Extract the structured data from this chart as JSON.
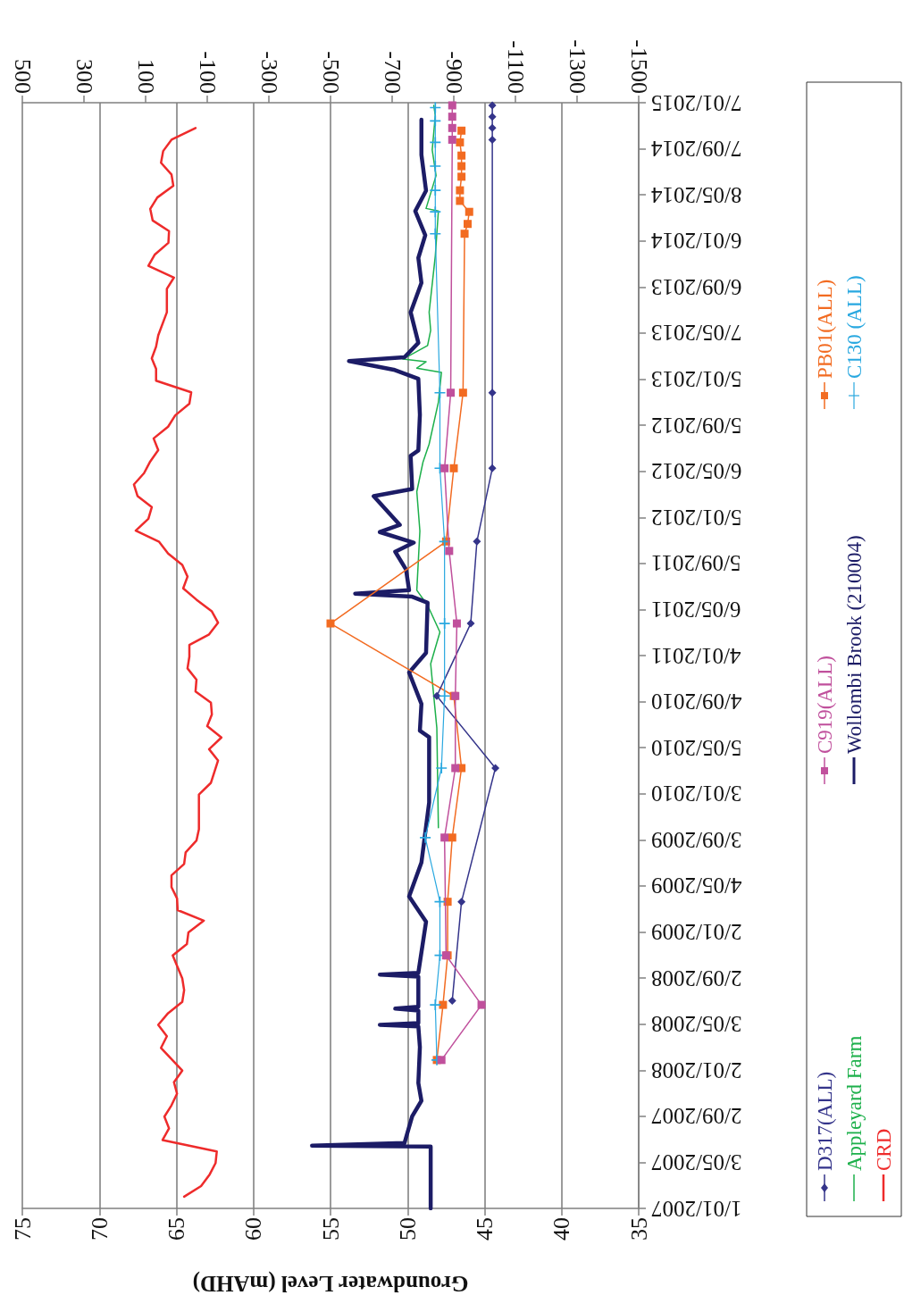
{
  "chart_data": {
    "type": "line",
    "orientation": "horizontal",
    "xlabel": "Groundwater Level (mAHD)",
    "ylim": [
      "2007-01-01",
      "2015-01-07"
    ],
    "yticks": [
      {
        "value": "2007-01-01",
        "label": "1/01/2007"
      },
      {
        "value": "2007-05-03",
        "label": "3/05/2007"
      },
      {
        "value": "2007-09-02",
        "label": "2/09/2007"
      },
      {
        "value": "2008-01-02",
        "label": "2/01/2008"
      },
      {
        "value": "2008-05-03",
        "label": "3/05/2008"
      },
      {
        "value": "2008-09-02",
        "label": "2/09/2008"
      },
      {
        "value": "2009-01-02",
        "label": "2/01/2009"
      },
      {
        "value": "2009-05-04",
        "label": "4/05/2009"
      },
      {
        "value": "2009-09-03",
        "label": "3/09/2009"
      },
      {
        "value": "2010-01-03",
        "label": "3/01/2010"
      },
      {
        "value": "2010-05-05",
        "label": "5/05/2010"
      },
      {
        "value": "2010-09-04",
        "label": "4/09/2010"
      },
      {
        "value": "2011-01-04",
        "label": "4/01/2011"
      },
      {
        "value": "2011-05-06",
        "label": "6/05/2011"
      },
      {
        "value": "2011-09-05",
        "label": "5/09/2011"
      },
      {
        "value": "2012-01-05",
        "label": "5/01/2012"
      },
      {
        "value": "2012-05-06",
        "label": "6/05/2012"
      },
      {
        "value": "2012-09-05",
        "label": "5/09/2012"
      },
      {
        "value": "2013-01-05",
        "label": "5/01/2013"
      },
      {
        "value": "2013-05-07",
        "label": "7/05/2013"
      },
      {
        "value": "2013-09-06",
        "label": "6/09/2013"
      },
      {
        "value": "2014-01-06",
        "label": "6/01/2014"
      },
      {
        "value": "2014-05-08",
        "label": "8/05/2014"
      },
      {
        "value": "2014-09-07",
        "label": "7/09/2014"
      },
      {
        "value": "2015-01-07",
        "label": "7/01/2015"
      }
    ],
    "xlim": [
      75,
      35
    ],
    "xticks": [
      75,
      70,
      65,
      60,
      55,
      50,
      45,
      40,
      35
    ],
    "x2lim": [
      500,
      -1500
    ],
    "x2ticks": [
      500,
      300,
      100,
      -100,
      -300,
      -500,
      -700,
      -900,
      -1100,
      -1300,
      -1500
    ],
    "grid": "x",
    "legend": "right",
    "series": [
      {
        "name": "D317(ALL)",
        "color": "#34348a",
        "marker": "diamond",
        "x": [
          "2008-07-04",
          "2009-03-23",
          "2010-03-12",
          "2010-09-19",
          "2011-03-30",
          "2011-11-02",
          "2012-05-14",
          "2012-11-30",
          "2014-10-01",
          "2014-11-01",
          "2014-12-01",
          "2014-12-31"
        ],
        "values": [
          47.1,
          46.5,
          44.3,
          48.1,
          45.9,
          45.5,
          44.5,
          44.5,
          44.5,
          44.5,
          44.5,
          44.5
        ]
      },
      {
        "name": "C919(ALL)",
        "color": "#c0509c",
        "marker": "square",
        "x": [
          "2008-01-29",
          "2008-06-23",
          "2008-11-01",
          "2009-09-09",
          "2010-03-12",
          "2010-09-19",
          "2011-03-30",
          "2011-10-08",
          "2012-05-14",
          "2012-11-30",
          "2014-10-01",
          "2014-11-01",
          "2014-12-01",
          "2014-12-31"
        ],
        "values": [
          47.8,
          45.2,
          47.5,
          47.6,
          46.9,
          46.9,
          46.8,
          47.3,
          47.6,
          47.2,
          47.1,
          47.1,
          47.1,
          47.1
        ]
      },
      {
        "name": "PB01(ALL)",
        "color": "#f26b21",
        "marker": "square",
        "x": [
          "2008-01-29",
          "2008-06-23",
          "2008-11-01",
          "2009-03-23",
          "2009-09-09",
          "2010-03-12",
          "2010-09-19",
          "2011-03-30",
          "2011-11-02",
          "2012-05-14",
          "2012-11-30",
          "2014-01-25",
          "2014-02-20",
          "2014-03-24",
          "2014-04-22",
          "2014-05-20",
          "2014-06-25",
          "2014-07-23",
          "2014-08-20",
          "2014-09-24",
          "2014-10-25"
        ],
        "values": [
          48.1,
          47.7,
          47.4,
          47.4,
          47.1,
          46.5,
          47.0,
          55,
          47.5,
          47.0,
          46.4,
          46.3,
          46.1,
          46.0,
          46.6,
          46.6,
          46.5,
          46.5,
          46.5,
          46.6,
          46.5
        ]
      },
      {
        "name": "Appleyard Farm",
        "color": "#1db04b",
        "marker": "none",
        "x": [
          "2009-10-05",
          "2010-06-26",
          "2010-12-13",
          "2011-03-07",
          "2011-05-17",
          "2011-06-26",
          "2011-11-30",
          "2012-03-13",
          "2012-05-30",
          "2012-07-17",
          "2012-11-05",
          "2013-01-23",
          "2013-02-03",
          "2013-02-20",
          "2013-02-27",
          "2013-04-04",
          "2013-05-14",
          "2013-07-01",
          "2013-11-27",
          "2014-03-26",
          "2014-04-02",
          "2014-06-28",
          "2014-09-04",
          "2014-12-04",
          "2014-12-31"
        ],
        "values": [
          48.0,
          48.1,
          48.5,
          47.9,
          48.7,
          49.4,
          49.2,
          49.4,
          49.0,
          48.6,
          48.0,
          47.8,
          49.4,
          48.8,
          50.3,
          48.7,
          48.5,
          48.6,
          48.2,
          48.0,
          48.8,
          48.15,
          48.4,
          48.2,
          48.3
        ]
      },
      {
        "name": "Wollombi Brook (210004)",
        "color": "#1c1c66",
        "marker": "none",
        "x": [
          "2007-01-01",
          "2007-05-30",
          "2007-06-14",
          "2007-06-16",
          "2007-06-23",
          "2007-09-02",
          "2007-10-13",
          "2007-11-29",
          "2008-03-03",
          "2008-04-27",
          "2008-05-01",
          "2008-05-06",
          "2008-06-08",
          "2008-06-13",
          "2008-06-18",
          "2008-09-06",
          "2008-09-11",
          "2008-09-16",
          "2009-01-29",
          "2009-04-06",
          "2009-07-05",
          "2009-12-11",
          "2010-06-02",
          "2010-06-19",
          "2010-08-29",
          "2010-11-20",
          "2011-01-11",
          "2011-05-24",
          "2011-06-09",
          "2011-06-17",
          "2011-06-26",
          "2011-08-20",
          "2011-10-06",
          "2011-10-30",
          "2011-11-27",
          "2011-12-16",
          "2012-03-01",
          "2012-03-20",
          "2012-06-16",
          "2012-06-30",
          "2012-10-03",
          "2013-01-06",
          "2013-01-30",
          "2013-02-22",
          "2013-03-04",
          "2013-04-11",
          "2013-07-01",
          "2013-09-17",
          "2013-11-22",
          "2014-01-21",
          "2014-03-26",
          "2014-05-19",
          "2014-08-22",
          "2014-11-23"
        ],
        "values": [
          48.5,
          48.5,
          48.5,
          56.2,
          50.2,
          49.7,
          49.1,
          49.3,
          49.2,
          49.3,
          51.8,
          49.3,
          49.3,
          50.8,
          49.3,
          49.3,
          51.8,
          49.3,
          48.8,
          49.9,
          49.1,
          48.6,
          48.6,
          49.2,
          49.1,
          49.9,
          48.8,
          48.7,
          49.7,
          53.4,
          49.9,
          50.1,
          50.8,
          49.6,
          51.8,
          50.5,
          52.2,
          49.7,
          49.8,
          49.3,
          49.2,
          49.3,
          50.9,
          53.8,
          50.2,
          49.3,
          49.8,
          49.1,
          49.3,
          48.85,
          49.5,
          48.8,
          49.1,
          49.1
        ]
      },
      {
        "name": "C130 (ALL)",
        "color": "#29a8e0",
        "marker": "cross",
        "x": [
          "2008-01-29",
          "2008-06-23",
          "2008-11-01",
          "2009-03-23",
          "2009-09-09",
          "2010-03-12",
          "2010-09-19",
          "2011-03-30",
          "2011-11-02",
          "2012-05-14",
          "2012-11-30",
          "2014-01-25",
          "2014-03-24",
          "2014-05-20",
          "2014-07-23",
          "2014-09-24",
          "2014-11-20",
          "2014-12-25"
        ],
        "values": [
          48.1,
          48.2,
          47.9,
          47.9,
          48.85,
          47.8,
          47.6,
          47.6,
          47.6,
          47.9,
          47.9,
          48.2,
          48.2,
          48.2,
          48.2,
          48.2,
          48.2,
          48.2
        ]
      },
      {
        "name": "CRD",
        "color": "#ee2b2b",
        "marker": "none",
        "axis": "x2",
        "x": [
          "2007-02",
          "2007-03",
          "2007-04",
          "2007-05",
          "2007-06",
          "2007-07",
          "2007-08",
          "2007-09",
          "2007-10",
          "2007-11",
          "2007-12",
          "2008-01",
          "2008-03",
          "2008-04",
          "2008-05",
          "2008-06",
          "2008-07",
          "2008-08",
          "2008-09",
          "2008-11",
          "2008-12",
          "2009-01",
          "2009-02",
          "2009-03",
          "2009-04",
          "2009-05",
          "2009-06",
          "2009-07",
          "2009-08",
          "2009-09",
          "2009-10",
          "2010-01",
          "2010-02",
          "2010-04",
          "2010-05",
          "2010-06",
          "2010-07",
          "2010-08",
          "2010-09",
          "2010-10",
          "2010-11",
          "2010-12",
          "2011-01",
          "2011-02",
          "2011-03",
          "2011-04",
          "2011-05",
          "2011-06",
          "2011-07",
          "2011-08",
          "2011-09",
          "2011-10",
          "2011-11",
          "2011-12",
          "2012-01",
          "2012-02",
          "2012-03",
          "2012-04",
          "2012-05",
          "2012-06",
          "2012-07",
          "2012-08",
          "2012-09",
          "2012-10",
          "2012-11",
          "2012-12",
          "2013-01",
          "2013-02",
          "2013-03",
          "2013-04",
          "2013-05",
          "2013-07",
          "2013-09",
          "2013-10",
          "2013-11",
          "2013-12",
          "2014-01",
          "2014-02",
          "2014-03",
          "2014-04",
          "2014-05",
          "2014-06",
          "2014-07",
          "2014-08",
          "2014-09",
          "2014-10",
          "2014-11"
        ],
        "values": [
          -25,
          -80,
          -108,
          -127,
          -131,
          45,
          24,
          39,
          16,
          -2,
          8,
          -19,
          50,
          31,
          59,
          27,
          -19,
          -25,
          -19,
          12,
          -34,
          -39,
          -89,
          -4,
          -2,
          16,
          16,
          -25,
          -30,
          -65,
          -73,
          -73,
          -112,
          -135,
          -106,
          -146,
          -100,
          -115,
          -112,
          -62,
          -65,
          -36,
          -42,
          -42,
          -106,
          -135,
          -115,
          -65,
          -22,
          -36,
          -19,
          27,
          56,
          132,
          91,
          80,
          126,
          138,
          105,
          85,
          59,
          74,
          27,
          4,
          -42,
          -48,
          66,
          66,
          80,
          66,
          59,
          31,
          31,
          8,
          91,
          70,
          26,
          24,
          77,
          85,
          62,
          10,
          16,
          50,
          43,
          16,
          -62
        ]
      }
    ]
  }
}
